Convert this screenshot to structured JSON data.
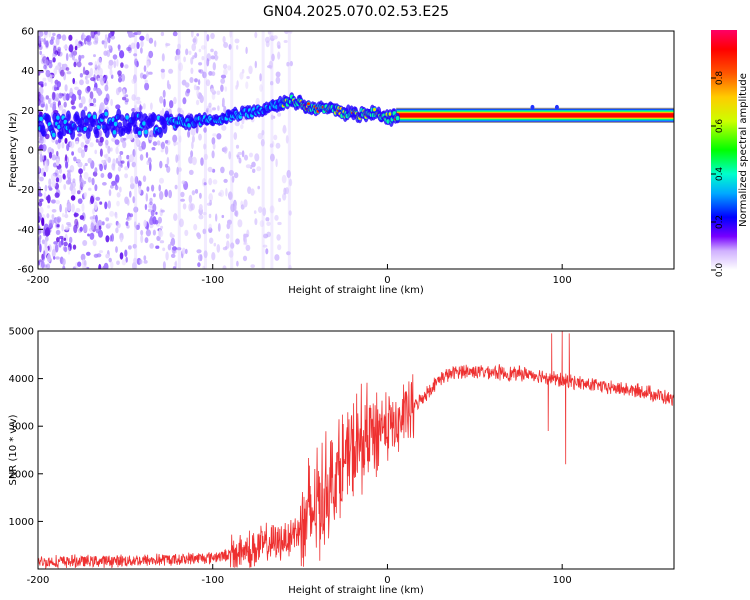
{
  "title": "GN04.2025.070.02.53.E25",
  "chart_data": [
    {
      "type": "heatmap",
      "xlabel": "Height of straight line (km)",
      "ylabel": "Frequency (Hz)",
      "xlim": [
        -200,
        164
      ],
      "ylim": [
        -60,
        60
      ],
      "x_ticks": [
        -200,
        -100,
        0,
        100
      ],
      "y_ticks": [
        -60,
        -40,
        -20,
        0,
        20,
        40,
        60
      ],
      "grid": false,
      "colorbar": {
        "label": "Normalized spectral amplitude",
        "range": [
          0,
          1
        ],
        "ticks": [
          0.0,
          0.2,
          0.4,
          0.6,
          0.8
        ],
        "colormap": [
          "#ffffff",
          "#5500ff",
          "#0000ff",
          "#00ffff",
          "#00ff00",
          "#ffff00",
          "#ff8800",
          "#ff0000",
          "#ff0066"
        ]
      },
      "ridge": {
        "x": [
          -200,
          -170,
          -150,
          -130,
          -120,
          -110,
          -100,
          -90,
          -80,
          -70,
          -60,
          -55,
          -50,
          -45,
          -40,
          -35,
          -30,
          -25,
          -20,
          -15,
          -10,
          -5,
          0,
          5,
          10,
          50,
          100,
          164
        ],
        "y": [
          12,
          13,
          14,
          13,
          14,
          14,
          15,
          17,
          19,
          21,
          24,
          25,
          24,
          22,
          21,
          20,
          20,
          19,
          18,
          18,
          19,
          18,
          16,
          17,
          17.5,
          17.5,
          17.5,
          17.5
        ]
      },
      "noise_extent_x": [
        -200,
        -55
      ]
    },
    {
      "type": "line",
      "xlabel": "Height of straight line (km)",
      "ylabel": "SNR (10 * v/v)",
      "xlim": [
        -200,
        164
      ],
      "ylim": [
        0,
        5000
      ],
      "x_ticks": [
        -200,
        -100,
        0,
        100
      ],
      "y_ticks": [
        1000,
        2000,
        3000,
        4000,
        5000
      ],
      "grid": false,
      "color": "#ee3030",
      "series": [
        {
          "x": [
            -200,
            -180,
            -160,
            -140,
            -120,
            -100,
            -90,
            -80,
            -70,
            -60,
            -50,
            -45,
            -40,
            -35,
            -30,
            -25,
            -20,
            -15,
            -10,
            -5,
            0,
            5,
            10,
            15,
            20,
            25,
            30,
            40,
            50,
            60,
            70,
            80,
            90,
            95,
            100,
            105,
            110,
            120,
            130,
            140,
            150,
            164
          ],
          "y": [
            150,
            160,
            170,
            180,
            200,
            250,
            300,
            400,
            500,
            600,
            850,
            1100,
            1400,
            1700,
            1900,
            2200,
            2400,
            2600,
            2800,
            3000,
            3000,
            3000,
            3200,
            3400,
            3600,
            3800,
            4000,
            4150,
            4150,
            4150,
            4100,
            4100,
            4050,
            4000,
            3950,
            3950,
            3900,
            3850,
            3800,
            3750,
            3700,
            3550
          ]
        }
      ],
      "spikes": [
        {
          "x": 92,
          "y": 2900
        },
        {
          "x": 94,
          "y": 4950
        },
        {
          "x": 100,
          "y": 5000
        },
        {
          "x": 102,
          "y": 2200
        },
        {
          "x": 104,
          "y": 4950
        }
      ]
    }
  ]
}
